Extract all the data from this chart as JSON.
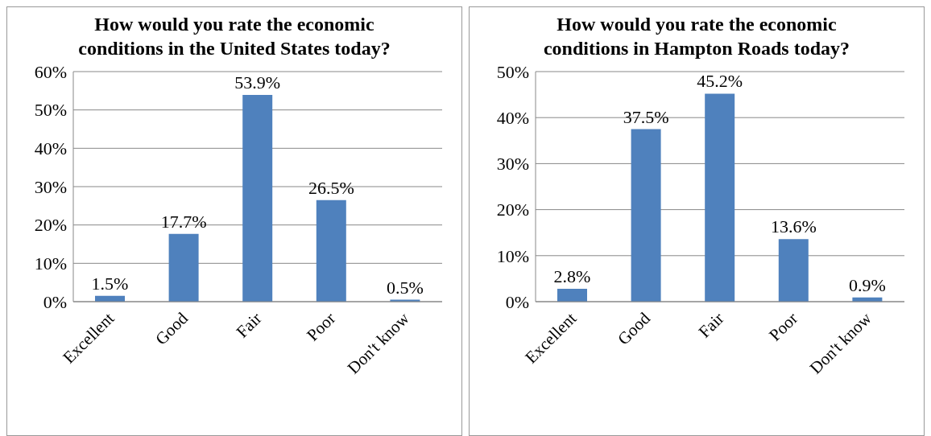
{
  "chart_data": [
    {
      "type": "bar",
      "title": "How would you rate the economic conditions in the United States today?",
      "categories": [
        "Excellent",
        "Good",
        "Fair",
        "Poor",
        "Don't know"
      ],
      "values": [
        1.5,
        17.7,
        53.9,
        26.5,
        0.5
      ],
      "value_labels": [
        "1.5%",
        "17.7%",
        "53.9%",
        "26.5%",
        "0.5%"
      ],
      "color": "#4f81bd",
      "ylim": [
        0,
        60
      ],
      "yticks": [
        {
          "value": 0,
          "label": "0%"
        },
        {
          "value": 10,
          "label": "10%"
        },
        {
          "value": 20,
          "label": "20%"
        },
        {
          "value": 30,
          "label": "30%"
        },
        {
          "value": 40,
          "label": "40%"
        },
        {
          "value": 50,
          "label": "50%"
        },
        {
          "value": 60,
          "label": "60%"
        }
      ],
      "grid": "y",
      "legend": false
    },
    {
      "type": "bar",
      "title": "How would you rate the economic conditions in Hampton Roads today?",
      "categories": [
        "Excellent",
        "Good",
        "Fair",
        "Poor",
        "Don't know"
      ],
      "values": [
        2.8,
        37.5,
        45.2,
        13.6,
        0.9
      ],
      "value_labels": [
        "2.8%",
        "37.5%",
        "45.2%",
        "13.6%",
        "0.9%"
      ],
      "color": "#4f81bd",
      "ylim": [
        0,
        50
      ],
      "yticks": [
        {
          "value": 0,
          "label": "0%"
        },
        {
          "value": 10,
          "label": "10%"
        },
        {
          "value": 20,
          "label": "20%"
        },
        {
          "value": 30,
          "label": "30%"
        },
        {
          "value": 40,
          "label": "40%"
        },
        {
          "value": 50,
          "label": "50%"
        }
      ],
      "grid": "y",
      "legend": false
    }
  ]
}
